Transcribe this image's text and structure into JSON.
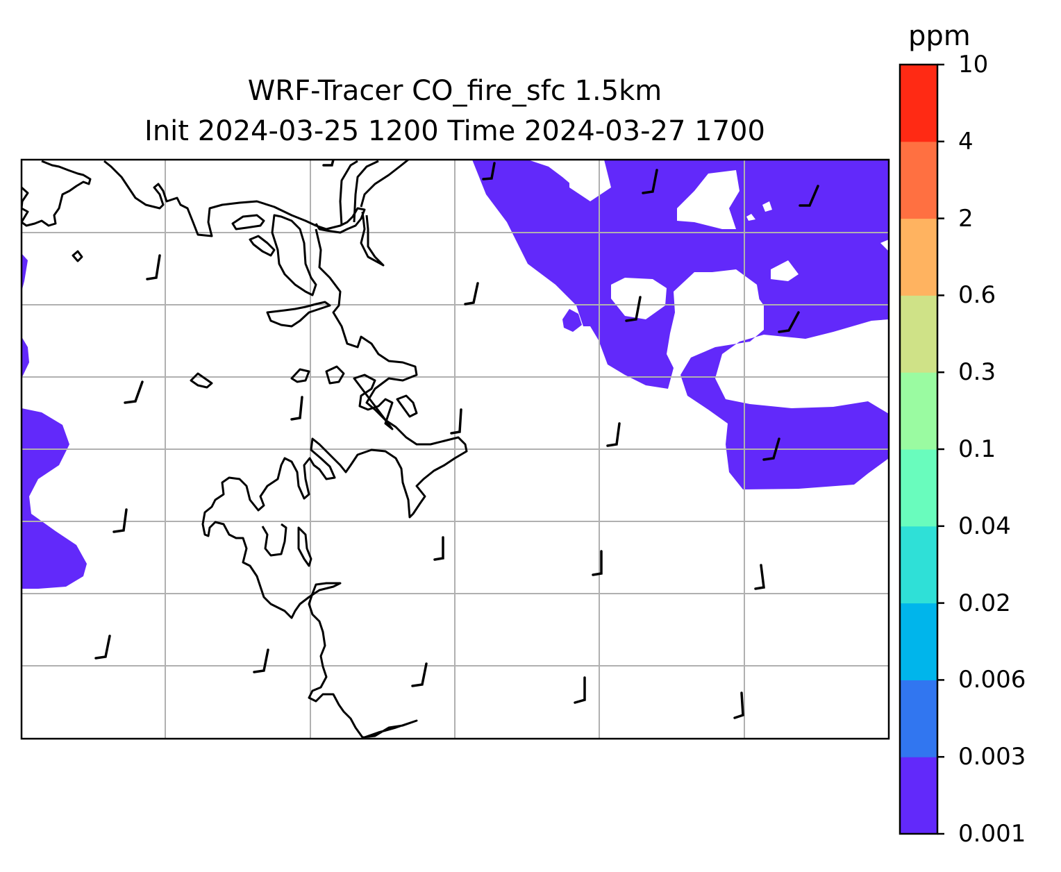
{
  "title": {
    "line1": "WRF-Tracer CO_fire_sfc 1.5km",
    "line2": "Init 2024-03-25 1200 Time 2024-03-27 1700"
  },
  "colorbar": {
    "unit": "ppm",
    "levels": [
      "0.001",
      "0.003",
      "0.006",
      "0.02",
      "0.04",
      "0.1",
      "0.3",
      "0.6",
      "2",
      "4",
      "10"
    ],
    "colors": [
      "#6229fa",
      "#3176f0",
      "#00b5eb",
      "#2fe0d7",
      "#69fcbd",
      "#9afba1",
      "#cfe287",
      "#ffb360",
      "#ff7041",
      "#ff2a14"
    ]
  },
  "map": {
    "field_color": "#6229fa",
    "grid_color": "#b0b0b0",
    "coastline_color": "#000000"
  }
}
